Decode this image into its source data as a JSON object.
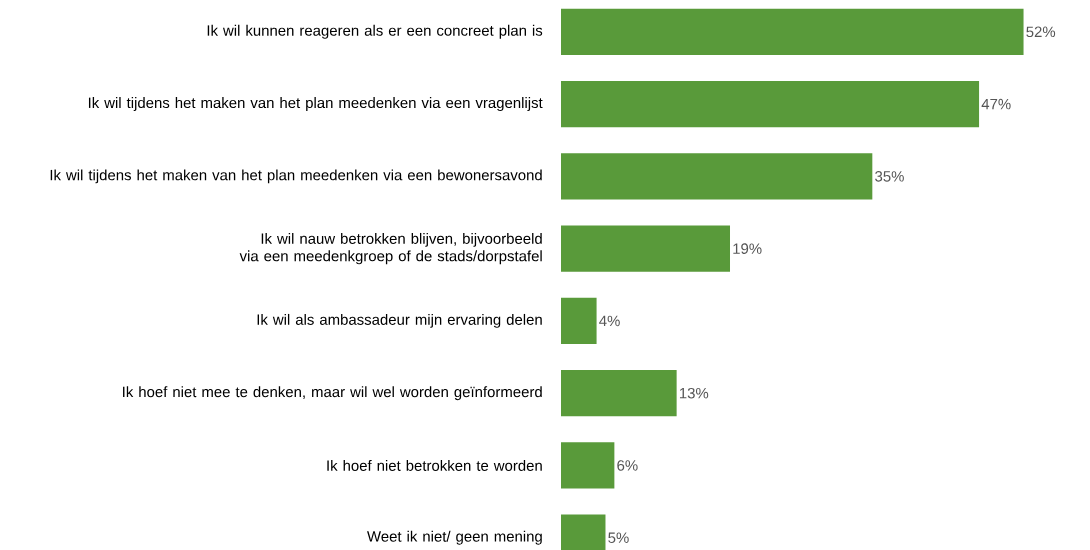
{
  "chart_data": {
    "type": "bar",
    "orientation": "horizontal",
    "categories": [
      "Ik wil kunnen reageren als er een concreet plan is",
      "Ik wil tijdens het maken van het plan meedenken via een vragenlijst",
      "Ik wil tijdens het maken van het plan meedenken via een bewonersavond",
      "Ik wil nauw betrokken blijven, bijvoorbeeld via een meedenkgroep of de stads/dorpstafel",
      "Ik wil als ambassadeur mijn ervaring delen",
      "Ik hoef niet mee te denken, maar wil wel worden geïnformeerd",
      "Ik hoef niet betrokken te worden",
      "Weet ik niet/ geen mening"
    ],
    "values": [
      52,
      47,
      35,
      19,
      4,
      13,
      6,
      5
    ],
    "value_labels": [
      "52%",
      "47%",
      "35%",
      "19%",
      "4%",
      "13%",
      "6%",
      "5%"
    ],
    "color": "#599a3a"
  }
}
